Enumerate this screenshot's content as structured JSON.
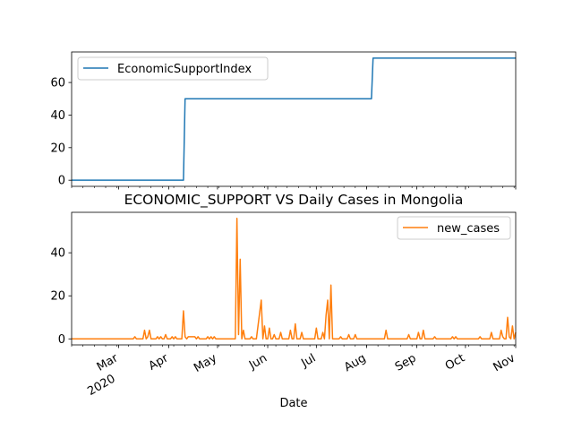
{
  "chart_data": [
    {
      "type": "line",
      "title": "",
      "xlabel": "",
      "ylabel": "",
      "ylim": [
        -3.75,
        78.75
      ],
      "xlim": [
        "2020-02-01",
        "2020-11-01"
      ],
      "yticks": [
        0,
        20,
        40,
        60
      ],
      "legend_position": "upper left",
      "grid": false,
      "series": [
        {
          "name": "EconomicSupportIndex",
          "color": "#1f77b4",
          "points": [
            [
              "2020-02-01",
              0
            ],
            [
              "2020-04-10",
              0
            ],
            [
              "2020-04-11",
              50
            ],
            [
              "2020-08-04",
              50
            ],
            [
              "2020-08-05",
              75
            ],
            [
              "2020-11-01",
              75
            ]
          ]
        }
      ]
    },
    {
      "type": "line",
      "title": "ECONOMIC_SUPPORT VS Daily Cases in Mongolia",
      "xlabel": "Date",
      "ylabel": "",
      "ylim": [
        -2.8,
        58.8
      ],
      "xlim": [
        "2020-02-01",
        "2020-11-01"
      ],
      "yticks": [
        0,
        20,
        40
      ],
      "xticks": [
        {
          "date": "2020-03-01",
          "label": "Mar",
          "sublabel": "2020"
        },
        {
          "date": "2020-04-01",
          "label": "Apr",
          "sublabel": ""
        },
        {
          "date": "2020-05-01",
          "label": "May",
          "sublabel": ""
        },
        {
          "date": "2020-06-01",
          "label": "Jun",
          "sublabel": ""
        },
        {
          "date": "2020-07-01",
          "label": "Jul",
          "sublabel": ""
        },
        {
          "date": "2020-08-01",
          "label": "Aug",
          "sublabel": ""
        },
        {
          "date": "2020-09-01",
          "label": "Sep",
          "sublabel": ""
        },
        {
          "date": "2020-10-01",
          "label": "Oct",
          "sublabel": ""
        },
        {
          "date": "2020-11-01",
          "label": "Nov",
          "sublabel": ""
        }
      ],
      "legend_position": "upper right",
      "grid": false,
      "series": [
        {
          "name": "new_cases",
          "color": "#ff7f0e",
          "points": [
            [
              "2020-02-01",
              0
            ],
            [
              "2020-03-10",
              0
            ],
            [
              "2020-03-11",
              1
            ],
            [
              "2020-03-12",
              0
            ],
            [
              "2020-03-16",
              0
            ],
            [
              "2020-03-17",
              4
            ],
            [
              "2020-03-18",
              0
            ],
            [
              "2020-03-19",
              1
            ],
            [
              "2020-03-20",
              4
            ],
            [
              "2020-03-21",
              0
            ],
            [
              "2020-03-24",
              0
            ],
            [
              "2020-03-25",
              1
            ],
            [
              "2020-03-26",
              0
            ],
            [
              "2020-03-27",
              1
            ],
            [
              "2020-03-28",
              0
            ],
            [
              "2020-03-29",
              0
            ],
            [
              "2020-03-30",
              2
            ],
            [
              "2020-03-31",
              0
            ],
            [
              "2020-04-02",
              0
            ],
            [
              "2020-04-03",
              1
            ],
            [
              "2020-04-04",
              0
            ],
            [
              "2020-04-05",
              1
            ],
            [
              "2020-04-06",
              0
            ],
            [
              "2020-04-09",
              0
            ],
            [
              "2020-04-10",
              13
            ],
            [
              "2020-04-11",
              1
            ],
            [
              "2020-04-12",
              0
            ],
            [
              "2020-04-13",
              1
            ],
            [
              "2020-04-15",
              1
            ],
            [
              "2020-04-17",
              1
            ],
            [
              "2020-04-18",
              0
            ],
            [
              "2020-04-19",
              1
            ],
            [
              "2020-04-20",
              0
            ],
            [
              "2020-04-24",
              0
            ],
            [
              "2020-04-25",
              1
            ],
            [
              "2020-04-26",
              0
            ],
            [
              "2020-04-27",
              1
            ],
            [
              "2020-04-28",
              0
            ],
            [
              "2020-04-29",
              1
            ],
            [
              "2020-04-30",
              0
            ],
            [
              "2020-05-12",
              0
            ],
            [
              "2020-05-13",
              56
            ],
            [
              "2020-05-14",
              2
            ],
            [
              "2020-05-15",
              37
            ],
            [
              "2020-05-16",
              0
            ],
            [
              "2020-05-17",
              4
            ],
            [
              "2020-05-18",
              0
            ],
            [
              "2020-05-21",
              0
            ],
            [
              "2020-05-22",
              1
            ],
            [
              "2020-05-23",
              0
            ],
            [
              "2020-05-25",
              0
            ],
            [
              "2020-05-28",
              18
            ],
            [
              "2020-05-29",
              0
            ],
            [
              "2020-05-30",
              6
            ],
            [
              "2020-05-31",
              0
            ],
            [
              "2020-06-01",
              0
            ],
            [
              "2020-06-02",
              5
            ],
            [
              "2020-06-03",
              0
            ],
            [
              "2020-06-04",
              0
            ],
            [
              "2020-06-05",
              2
            ],
            [
              "2020-06-06",
              0
            ],
            [
              "2020-06-08",
              0
            ],
            [
              "2020-06-09",
              3
            ],
            [
              "2020-06-10",
              0
            ],
            [
              "2020-06-14",
              0
            ],
            [
              "2020-06-15",
              4
            ],
            [
              "2020-06-16",
              0
            ],
            [
              "2020-06-17",
              0
            ],
            [
              "2020-06-18",
              7
            ],
            [
              "2020-06-19",
              0
            ],
            [
              "2020-06-21",
              0
            ],
            [
              "2020-06-22",
              3
            ],
            [
              "2020-06-23",
              0
            ],
            [
              "2020-06-30",
              0
            ],
            [
              "2020-07-01",
              5
            ],
            [
              "2020-07-02",
              0
            ],
            [
              "2020-07-04",
              0
            ],
            [
              "2020-07-05",
              3
            ],
            [
              "2020-07-06",
              0
            ],
            [
              "2020-07-07",
              11
            ],
            [
              "2020-07-08",
              18
            ],
            [
              "2020-07-09",
              0
            ],
            [
              "2020-07-10",
              25
            ],
            [
              "2020-07-11",
              0
            ],
            [
              "2020-07-15",
              0
            ],
            [
              "2020-07-16",
              1
            ],
            [
              "2020-07-17",
              0
            ],
            [
              "2020-07-20",
              0
            ],
            [
              "2020-07-21",
              2
            ],
            [
              "2020-07-22",
              0
            ],
            [
              "2020-07-24",
              0
            ],
            [
              "2020-07-25",
              2
            ],
            [
              "2020-07-26",
              0
            ],
            [
              "2020-08-12",
              0
            ],
            [
              "2020-08-13",
              4
            ],
            [
              "2020-08-14",
              0
            ],
            [
              "2020-08-26",
              0
            ],
            [
              "2020-08-27",
              2
            ],
            [
              "2020-08-28",
              0
            ],
            [
              "2020-09-01",
              0
            ],
            [
              "2020-09-02",
              3
            ],
            [
              "2020-09-03",
              0
            ],
            [
              "2020-09-04",
              0
            ],
            [
              "2020-09-05",
              4
            ],
            [
              "2020-09-06",
              0
            ],
            [
              "2020-09-11",
              0
            ],
            [
              "2020-09-12",
              1
            ],
            [
              "2020-09-13",
              0
            ],
            [
              "2020-09-22",
              0
            ],
            [
              "2020-09-23",
              1
            ],
            [
              "2020-09-24",
              0
            ],
            [
              "2020-09-25",
              1
            ],
            [
              "2020-09-26",
              0
            ],
            [
              "2020-10-09",
              0
            ],
            [
              "2020-10-10",
              1
            ],
            [
              "2020-10-11",
              0
            ],
            [
              "2020-10-16",
              0
            ],
            [
              "2020-10-17",
              3
            ],
            [
              "2020-10-18",
              0
            ],
            [
              "2020-10-22",
              0
            ],
            [
              "2020-10-23",
              4
            ],
            [
              "2020-10-24",
              1
            ],
            [
              "2020-10-25",
              0
            ],
            [
              "2020-10-26",
              0
            ],
            [
              "2020-10-27",
              10
            ],
            [
              "2020-10-28",
              1
            ],
            [
              "2020-10-29",
              0
            ],
            [
              "2020-10-30",
              6
            ],
            [
              "2020-10-31",
              0
            ],
            [
              "2020-11-01",
              3
            ]
          ]
        }
      ]
    }
  ]
}
